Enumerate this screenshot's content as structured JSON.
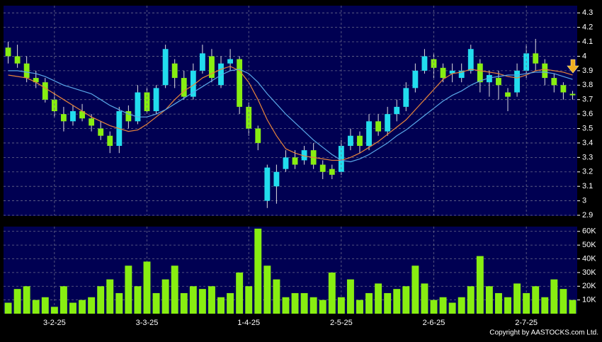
{
  "chart_data": [
    {
      "type": "candlestick",
      "up_color": "#22ddee",
      "down_color": "#88ee11",
      "grid": true,
      "ylim": [
        2.9,
        4.35
      ],
      "yticks": [
        2.9,
        3,
        3.1,
        3.2,
        3.3,
        3.4,
        3.5,
        3.6,
        3.7,
        3.8,
        3.9,
        4,
        4.1,
        4.2,
        4.3
      ],
      "open": [
        4.06,
        4.0,
        3.95,
        3.85,
        3.82,
        3.7,
        3.6,
        3.55,
        3.62,
        3.57,
        3.5,
        3.45,
        3.38,
        3.62,
        3.55,
        3.75,
        3.62,
        3.8,
        3.95,
        3.85,
        3.72,
        3.9,
        4.0,
        3.8,
        3.95,
        3.98,
        3.65,
        3.5,
        3.0,
        3.1,
        3.22,
        3.3,
        3.28,
        3.35,
        3.25,
        3.22,
        3.2,
        3.38,
        3.45,
        3.38,
        3.55,
        3.48,
        3.6,
        3.65,
        3.78,
        3.9,
        3.98,
        3.92,
        3.88,
        3.85,
        3.9,
        3.95,
        3.82,
        3.85,
        3.75,
        3.75,
        3.9,
        4.02,
        3.95,
        3.85,
        3.8,
        3.74
      ],
      "high": [
        4.1,
        4.08,
        4.0,
        3.9,
        3.85,
        3.75,
        3.65,
        3.66,
        3.67,
        3.6,
        3.55,
        3.48,
        3.65,
        3.66,
        3.8,
        3.78,
        3.8,
        4.08,
        3.98,
        3.9,
        3.95,
        4.08,
        4.05,
        4.0,
        4.05,
        4.0,
        3.68,
        3.52,
        3.25,
        3.25,
        3.35,
        3.35,
        3.38,
        3.4,
        3.28,
        3.25,
        3.42,
        3.5,
        3.48,
        3.6,
        3.6,
        3.65,
        3.7,
        3.82,
        3.95,
        4.05,
        4.02,
        3.95,
        3.95,
        3.95,
        4.08,
        3.98,
        3.9,
        3.9,
        3.78,
        3.95,
        4.08,
        4.12,
        3.98,
        3.88,
        3.82,
        3.76
      ],
      "low": [
        3.95,
        3.92,
        3.82,
        3.78,
        3.68,
        3.58,
        3.48,
        3.52,
        3.55,
        3.48,
        3.42,
        3.33,
        3.33,
        3.5,
        3.53,
        3.6,
        3.6,
        3.78,
        3.78,
        3.7,
        3.7,
        3.88,
        3.82,
        3.78,
        3.9,
        3.6,
        3.45,
        3.35,
        2.95,
        2.98,
        3.2,
        3.22,
        3.25,
        3.22,
        3.15,
        3.15,
        3.18,
        3.35,
        3.33,
        3.35,
        3.45,
        3.45,
        3.55,
        3.62,
        3.75,
        3.88,
        3.85,
        3.82,
        3.82,
        3.82,
        3.88,
        3.75,
        3.72,
        3.7,
        3.62,
        3.72,
        3.85,
        3.9,
        3.8,
        3.75,
        3.7,
        3.7
      ],
      "close": [
        4.0,
        3.95,
        3.85,
        3.82,
        3.7,
        3.62,
        3.55,
        3.62,
        3.57,
        3.52,
        3.45,
        3.38,
        3.62,
        3.55,
        3.75,
        3.62,
        3.78,
        4.05,
        3.85,
        3.72,
        3.9,
        4.02,
        3.85,
        3.95,
        3.98,
        3.65,
        3.5,
        3.4,
        3.23,
        3.2,
        3.3,
        3.25,
        3.35,
        3.25,
        3.2,
        3.18,
        3.38,
        3.45,
        3.38,
        3.55,
        3.48,
        3.6,
        3.65,
        3.78,
        3.9,
        4.0,
        3.92,
        3.85,
        3.9,
        3.9,
        4.05,
        3.82,
        3.87,
        3.8,
        3.72,
        3.9,
        4.02,
        3.95,
        3.85,
        3.8,
        3.75,
        3.73
      ],
      "series": [
        {
          "color": "#e8843a",
          "values": [
            3.87,
            3.86,
            3.85,
            3.82,
            3.78,
            3.74,
            3.7,
            3.66,
            3.62,
            3.58,
            3.55,
            3.52,
            3.5,
            3.48,
            3.49,
            3.53,
            3.58,
            3.63,
            3.7,
            3.76,
            3.8,
            3.85,
            3.88,
            3.91,
            3.93,
            3.9,
            3.82,
            3.7,
            3.56,
            3.45,
            3.36,
            3.33,
            3.31,
            3.3,
            3.29,
            3.28,
            3.28,
            3.3,
            3.33,
            3.37,
            3.41,
            3.46,
            3.51,
            3.56,
            3.63,
            3.7,
            3.77,
            3.84,
            3.88,
            3.89,
            3.91,
            3.9,
            3.89,
            3.88,
            3.86,
            3.85,
            3.87,
            3.9,
            3.91,
            3.9,
            3.89,
            3.87
          ]
        },
        {
          "color": "#5aa8e8",
          "values": [
            3.9,
            3.9,
            3.89,
            3.88,
            3.86,
            3.83,
            3.8,
            3.78,
            3.76,
            3.74,
            3.7,
            3.66,
            3.63,
            3.6,
            3.58,
            3.58,
            3.6,
            3.63,
            3.67,
            3.71,
            3.75,
            3.79,
            3.83,
            3.87,
            3.9,
            3.91,
            3.88,
            3.82,
            3.74,
            3.67,
            3.6,
            3.54,
            3.48,
            3.42,
            3.37,
            3.32,
            3.28,
            3.27,
            3.29,
            3.32,
            3.36,
            3.4,
            3.45,
            3.49,
            3.54,
            3.59,
            3.64,
            3.69,
            3.73,
            3.76,
            3.8,
            3.83,
            3.85,
            3.86,
            3.87,
            3.87,
            3.88,
            3.89,
            3.89,
            3.88,
            3.86,
            3.84
          ]
        }
      ]
    },
    {
      "type": "bar",
      "color": "#88ee11",
      "grid": true,
      "categories": [
        null,
        null,
        null,
        null,
        null,
        "3-2-25",
        null,
        null,
        null,
        null,
        null,
        null,
        null,
        null,
        null,
        "3-3-25",
        null,
        null,
        null,
        null,
        null,
        null,
        null,
        null,
        null,
        null,
        "1-4-25",
        null,
        null,
        null,
        null,
        null,
        null,
        null,
        null,
        null,
        "2-5-25",
        null,
        null,
        null,
        null,
        null,
        null,
        null,
        null,
        null,
        "2-6-25",
        null,
        null,
        null,
        null,
        null,
        null,
        null,
        null,
        null,
        "2-7-25",
        null,
        null,
        null,
        null,
        null
      ],
      "ylim": [
        0,
        63500
      ],
      "yticks": [
        {
          "value": 10000,
          "label": "10K"
        },
        {
          "value": 20000,
          "label": "20K"
        },
        {
          "value": 30000,
          "label": "30K"
        },
        {
          "value": 40000,
          "label": "40K"
        },
        {
          "value": 50000,
          "label": "50K"
        },
        {
          "value": 60000,
          "label": "60K"
        }
      ],
      "values": [
        8000,
        18000,
        20000,
        10000,
        12000,
        5000,
        20000,
        8000,
        10000,
        12000,
        20000,
        25000,
        15000,
        35000,
        20000,
        38000,
        15000,
        25000,
        35000,
        15000,
        20000,
        18000,
        20000,
        12000,
        15000,
        30000,
        20000,
        62000,
        35000,
        25000,
        12000,
        15000,
        15000,
        12000,
        10000,
        30000,
        12000,
        25000,
        10000,
        15000,
        22000,
        15000,
        18000,
        20000,
        35000,
        22000,
        10000,
        12000,
        8000,
        12000,
        20000,
        42000,
        20000,
        15000,
        12000,
        22000,
        15000,
        20000,
        12000,
        25000,
        18000,
        10000
      ]
    }
  ],
  "footer": "Copyright by AASTOCKS.com Ltd."
}
